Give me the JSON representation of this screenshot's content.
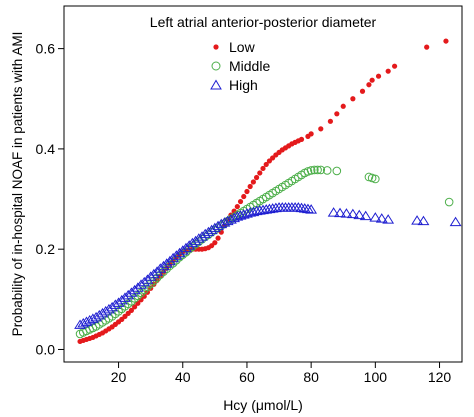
{
  "chart_data": {
    "type": "scatter",
    "xlabel": "Hcy (μmol/L)",
    "ylabel": "Probability of in-hospital NOAF in patients with AMI",
    "xlim": [
      3,
      127
    ],
    "ylim": [
      -0.025,
      0.685
    ],
    "xticks": [
      20,
      40,
      60,
      80,
      100,
      120
    ],
    "yticks": [
      0.0,
      0.2,
      0.4,
      0.6
    ],
    "ytick_labels": [
      "0.0",
      "0.2",
      "0.4",
      "0.6"
    ],
    "grid": false,
    "legend": {
      "title": "Left atrial anterior-posterior diameter",
      "placement": "top-center"
    },
    "series": [
      {
        "name": "Low",
        "marker": "filled-circle",
        "color": "#e41a1c",
        "points": [
          [
            8,
            0.016
          ],
          [
            9,
            0.018
          ],
          [
            10,
            0.02
          ],
          [
            11,
            0.022
          ],
          [
            12,
            0.024
          ],
          [
            13,
            0.027
          ],
          [
            14,
            0.03
          ],
          [
            15,
            0.033
          ],
          [
            16,
            0.037
          ],
          [
            17,
            0.041
          ],
          [
            18,
            0.045
          ],
          [
            19,
            0.05
          ],
          [
            20,
            0.055
          ],
          [
            21,
            0.06
          ],
          [
            22,
            0.066
          ],
          [
            23,
            0.072
          ],
          [
            24,
            0.078
          ],
          [
            25,
            0.085
          ],
          [
            26,
            0.092
          ],
          [
            27,
            0.099
          ],
          [
            28,
            0.106
          ],
          [
            29,
            0.114
          ],
          [
            30,
            0.122
          ],
          [
            31,
            0.13
          ],
          [
            32,
            0.138
          ],
          [
            33,
            0.146
          ],
          [
            34,
            0.154
          ],
          [
            35,
            0.162
          ],
          [
            36,
            0.17
          ],
          [
            37,
            0.177
          ],
          [
            38,
            0.184
          ],
          [
            39,
            0.19
          ],
          [
            40,
            0.195
          ],
          [
            41,
            0.198
          ],
          [
            42,
            0.199
          ],
          [
            43,
            0.2
          ],
          [
            44,
            0.2
          ],
          [
            45,
            0.2
          ],
          [
            46,
            0.2
          ],
          [
            47,
            0.201
          ],
          [
            48,
            0.203
          ],
          [
            49,
            0.207
          ],
          [
            50,
            0.213
          ],
          [
            51,
            0.222
          ],
          [
            52,
            0.234
          ],
          [
            53,
            0.247
          ],
          [
            54,
            0.259
          ],
          [
            55,
            0.268
          ],
          [
            56,
            0.276
          ],
          [
            57,
            0.285
          ],
          [
            58,
            0.295
          ],
          [
            59,
            0.305
          ],
          [
            60,
            0.315
          ],
          [
            61,
            0.325
          ],
          [
            62,
            0.334
          ],
          [
            63,
            0.343
          ],
          [
            64,
            0.352
          ],
          [
            65,
            0.361
          ],
          [
            66,
            0.369
          ],
          [
            67,
            0.376
          ],
          [
            68,
            0.382
          ],
          [
            69,
            0.388
          ],
          [
            70,
            0.393
          ],
          [
            71,
            0.398
          ],
          [
            72,
            0.402
          ],
          [
            73,
            0.406
          ],
          [
            74,
            0.41
          ],
          [
            75,
            0.413
          ],
          [
            76,
            0.416
          ],
          [
            77,
            0.419
          ],
          [
            79,
            0.425
          ],
          [
            80,
            0.43
          ],
          [
            83,
            0.44
          ],
          [
            86,
            0.455
          ],
          [
            88,
            0.47
          ],
          [
            90,
            0.485
          ],
          [
            93,
            0.5
          ],
          [
            96,
            0.515
          ],
          [
            98,
            0.528
          ],
          [
            99,
            0.537
          ],
          [
            101,
            0.545
          ],
          [
            104,
            0.555
          ],
          [
            106,
            0.565
          ],
          [
            116,
            0.603
          ],
          [
            122,
            0.615
          ]
        ]
      },
      {
        "name": "Middle",
        "marker": "open-circle",
        "color": "#4daf4a",
        "points": [
          [
            8,
            0.031
          ],
          [
            9,
            0.034
          ],
          [
            10,
            0.037
          ],
          [
            11,
            0.04
          ],
          [
            12,
            0.043
          ],
          [
            13,
            0.046
          ],
          [
            14,
            0.05
          ],
          [
            15,
            0.054
          ],
          [
            16,
            0.058
          ],
          [
            17,
            0.062
          ],
          [
            18,
            0.066
          ],
          [
            19,
            0.071
          ],
          [
            20,
            0.076
          ],
          [
            21,
            0.081
          ],
          [
            22,
            0.086
          ],
          [
            23,
            0.091
          ],
          [
            24,
            0.096
          ],
          [
            25,
            0.102
          ],
          [
            26,
            0.107
          ],
          [
            27,
            0.113
          ],
          [
            28,
            0.119
          ],
          [
            29,
            0.125
          ],
          [
            30,
            0.131
          ],
          [
            31,
            0.137
          ],
          [
            32,
            0.143
          ],
          [
            33,
            0.149
          ],
          [
            34,
            0.155
          ],
          [
            35,
            0.161
          ],
          [
            36,
            0.167
          ],
          [
            37,
            0.172
          ],
          [
            38,
            0.178
          ],
          [
            39,
            0.184
          ],
          [
            40,
            0.189
          ],
          [
            41,
            0.194
          ],
          [
            42,
            0.2
          ],
          [
            43,
            0.205
          ],
          [
            44,
            0.21
          ],
          [
            45,
            0.215
          ],
          [
            46,
            0.22
          ],
          [
            47,
            0.225
          ],
          [
            48,
            0.229
          ],
          [
            49,
            0.234
          ],
          [
            50,
            0.238
          ],
          [
            51,
            0.243
          ],
          [
            52,
            0.247
          ],
          [
            53,
            0.251
          ],
          [
            54,
            0.256
          ],
          [
            55,
            0.26
          ],
          [
            56,
            0.264
          ],
          [
            57,
            0.268
          ],
          [
            58,
            0.272
          ],
          [
            59,
            0.276
          ],
          [
            60,
            0.28
          ],
          [
            61,
            0.284
          ],
          [
            62,
            0.288
          ],
          [
            63,
            0.292
          ],
          [
            64,
            0.296
          ],
          [
            65,
            0.3
          ],
          [
            66,
            0.304
          ],
          [
            67,
            0.308
          ],
          [
            68,
            0.312
          ],
          [
            69,
            0.316
          ],
          [
            70,
            0.32
          ],
          [
            71,
            0.324
          ],
          [
            72,
            0.328
          ],
          [
            73,
            0.332
          ],
          [
            74,
            0.336
          ],
          [
            75,
            0.34
          ],
          [
            76,
            0.344
          ],
          [
            77,
            0.348
          ],
          [
            78,
            0.352
          ],
          [
            79,
            0.355
          ],
          [
            80,
            0.357
          ],
          [
            81,
            0.358
          ],
          [
            82,
            0.358
          ],
          [
            83,
            0.358
          ],
          [
            85,
            0.357
          ],
          [
            88,
            0.356
          ],
          [
            98,
            0.344
          ],
          [
            99,
            0.342
          ],
          [
            100,
            0.34
          ],
          [
            123,
            0.294
          ]
        ]
      },
      {
        "name": "High",
        "marker": "open-triangle",
        "color": "#1f1fd1",
        "points": [
          [
            8,
            0.049
          ],
          [
            9,
            0.052
          ],
          [
            10,
            0.055
          ],
          [
            11,
            0.058
          ],
          [
            12,
            0.061
          ],
          [
            13,
            0.064
          ],
          [
            14,
            0.068
          ],
          [
            15,
            0.072
          ],
          [
            16,
            0.076
          ],
          [
            17,
            0.08
          ],
          [
            18,
            0.084
          ],
          [
            19,
            0.089
          ],
          [
            20,
            0.093
          ],
          [
            21,
            0.098
          ],
          [
            22,
            0.103
          ],
          [
            23,
            0.108
          ],
          [
            24,
            0.113
          ],
          [
            25,
            0.118
          ],
          [
            26,
            0.123
          ],
          [
            27,
            0.129
          ],
          [
            28,
            0.134
          ],
          [
            29,
            0.139
          ],
          [
            30,
            0.145
          ],
          [
            31,
            0.15
          ],
          [
            32,
            0.155
          ],
          [
            33,
            0.161
          ],
          [
            34,
            0.166
          ],
          [
            35,
            0.171
          ],
          [
            36,
            0.176
          ],
          [
            37,
            0.182
          ],
          [
            38,
            0.187
          ],
          [
            39,
            0.192
          ],
          [
            40,
            0.197
          ],
          [
            41,
            0.202
          ],
          [
            42,
            0.207
          ],
          [
            43,
            0.212
          ],
          [
            44,
            0.216
          ],
          [
            45,
            0.221
          ],
          [
            46,
            0.225
          ],
          [
            47,
            0.23
          ],
          [
            48,
            0.234
          ],
          [
            49,
            0.238
          ],
          [
            50,
            0.242
          ],
          [
            51,
            0.246
          ],
          [
            52,
            0.25
          ],
          [
            53,
            0.253
          ],
          [
            54,
            0.256
          ],
          [
            55,
            0.259
          ],
          [
            56,
            0.262
          ],
          [
            57,
            0.265
          ],
          [
            58,
            0.267
          ],
          [
            59,
            0.269
          ],
          [
            60,
            0.271
          ],
          [
            61,
            0.273
          ],
          [
            62,
            0.274
          ],
          [
            63,
            0.276
          ],
          [
            64,
            0.277
          ],
          [
            65,
            0.278
          ],
          [
            66,
            0.279
          ],
          [
            67,
            0.28
          ],
          [
            68,
            0.281
          ],
          [
            69,
            0.282
          ],
          [
            70,
            0.283
          ],
          [
            71,
            0.283
          ],
          [
            72,
            0.283
          ],
          [
            73,
            0.283
          ],
          [
            74,
            0.283
          ],
          [
            75,
            0.283
          ],
          [
            76,
            0.283
          ],
          [
            77,
            0.282
          ],
          [
            78,
            0.281
          ],
          [
            79,
            0.28
          ],
          [
            80,
            0.279
          ],
          [
            87,
            0.273
          ],
          [
            89,
            0.272
          ],
          [
            91,
            0.271
          ],
          [
            93,
            0.27
          ],
          [
            95,
            0.268
          ],
          [
            97,
            0.266
          ],
          [
            100,
            0.263
          ],
          [
            102,
            0.261
          ],
          [
            104,
            0.259
          ],
          [
            113,
            0.257
          ],
          [
            115,
            0.256
          ],
          [
            125,
            0.254
          ]
        ]
      }
    ]
  }
}
